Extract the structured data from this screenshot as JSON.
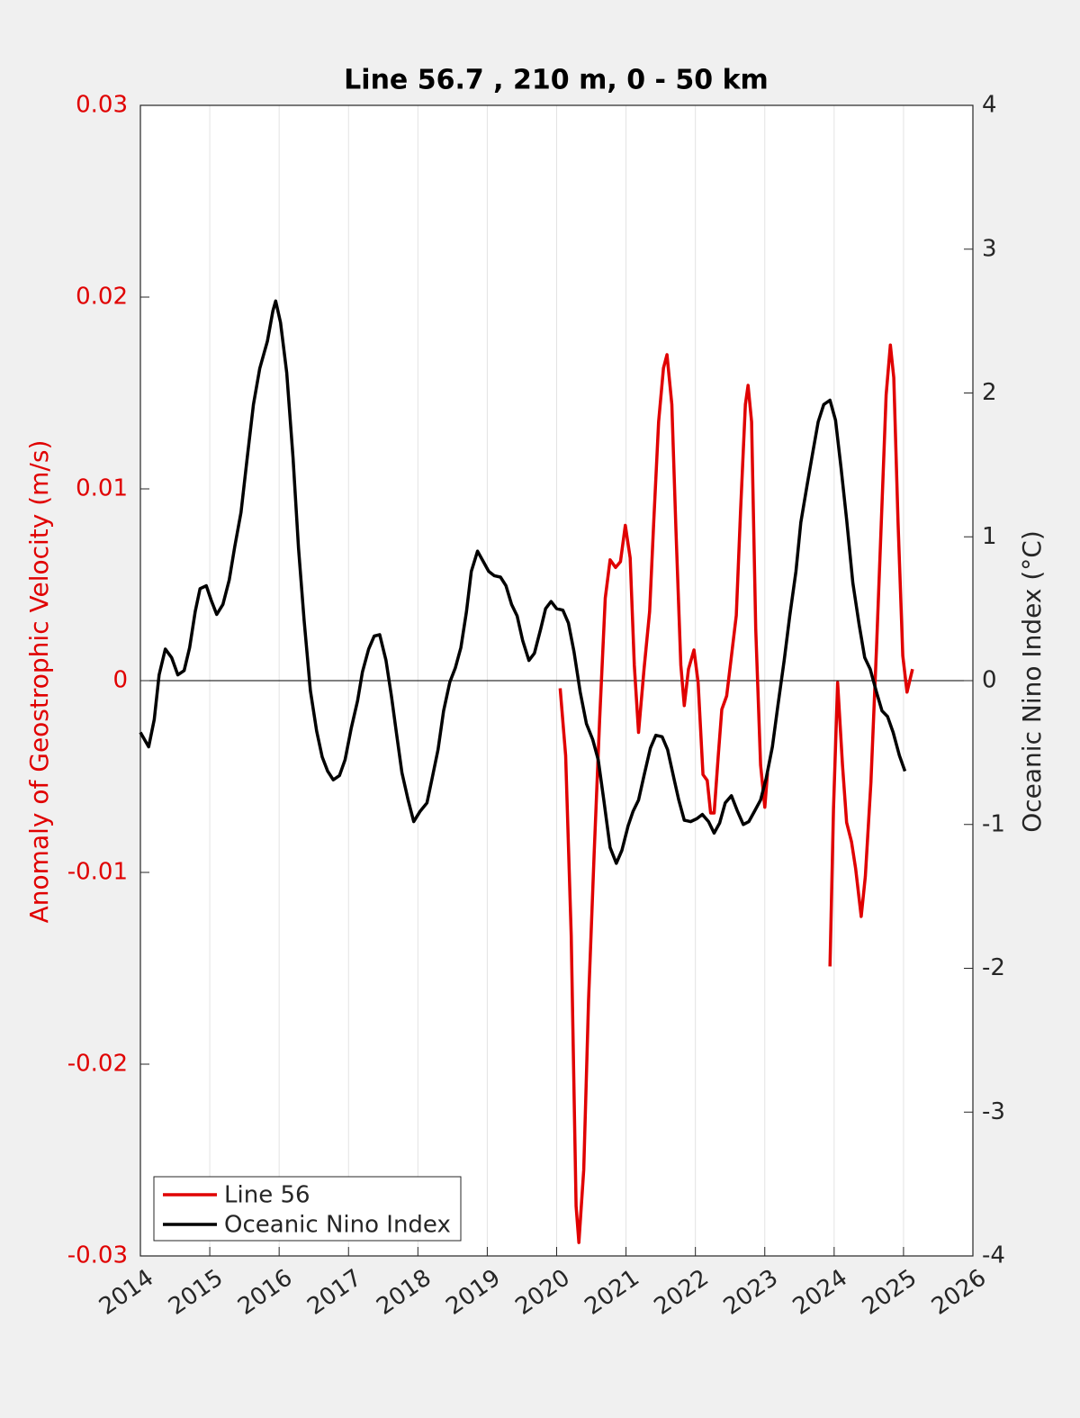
{
  "chart_data": {
    "type": "line",
    "title": "Line 56.7 , 210 m, 0 - 50 km",
    "y_label": "Anomaly of Geostrophic Velocity (m/s)",
    "y2_label": "Oceanic Nino Index (°C)",
    "xlim": [
      2014,
      2026
    ],
    "xticks": [
      2014,
      2015,
      2016,
      2017,
      2018,
      2019,
      2020,
      2021,
      2022,
      2023,
      2024,
      2025,
      2026
    ],
    "ylim": [
      -0.03,
      0.03
    ],
    "yticks": [
      -0.03,
      -0.02,
      -0.01,
      0,
      0.01,
      0.02,
      0.03
    ],
    "y2lim": [
      -4,
      4
    ],
    "y2ticks": [
      -4,
      -3,
      -2,
      -1,
      0,
      1,
      2,
      3,
      4
    ],
    "grid": true,
    "legend": "lower left",
    "y_color": "#e00000",
    "series": [
      {
        "name": "Line 56",
        "color": "#e00000",
        "x": [
          2020.05,
          2020.13,
          2020.21,
          2020.28,
          2020.32,
          2020.39,
          2020.46,
          2020.54,
          2020.62,
          2020.7,
          2020.77,
          2020.85,
          2020.92,
          2020.99,
          2021.06,
          2021.12,
          2021.18,
          2021.26,
          2021.34,
          2021.4,
          2021.47,
          2021.54,
          2021.59,
          2021.66,
          2021.72,
          2021.79,
          2021.84,
          2021.9,
          2021.98,
          2022.04,
          2022.11,
          2022.17,
          2022.22,
          2022.27,
          2022.33,
          2022.38,
          2022.45,
          2022.51,
          2022.59,
          2022.65,
          2022.72,
          2022.76,
          2022.81,
          2022.87,
          2022.94,
          2023.0,
          2023.04,
          null,
          2023.94,
          2023.99,
          2024.05,
          2024.12,
          2024.18,
          2024.25,
          2024.31,
          2024.39,
          2024.45,
          2024.53,
          2024.61,
          2024.69,
          2024.75,
          2024.81,
          2024.86,
          2024.92,
          2024.99,
          2025.05,
          2025.13
        ],
        "values": [
          -0.0004,
          -0.0039,
          -0.0133,
          -0.0274,
          -0.0293,
          -0.0255,
          -0.0166,
          -0.0091,
          -0.002,
          0.0043,
          0.0063,
          0.0059,
          0.0062,
          0.0081,
          0.0064,
          0.0008,
          -0.0027,
          0.0006,
          0.0036,
          0.0083,
          0.0135,
          0.0163,
          0.017,
          0.0144,
          0.0078,
          0.0008,
          -0.0013,
          0.0006,
          0.0016,
          -0.0001,
          -0.0049,
          -0.0052,
          -0.0069,
          -0.0069,
          -0.0039,
          -0.0015,
          -0.0008,
          0.001,
          0.0034,
          0.0088,
          0.0144,
          0.0154,
          0.0135,
          0.0027,
          -0.0044,
          -0.0066,
          -0.0048,
          null,
          -0.0149,
          -0.0067,
          -0.0001,
          -0.0044,
          -0.0074,
          -0.0084,
          -0.0098,
          -0.0123,
          -0.0102,
          -0.0053,
          0.0017,
          0.0092,
          0.0149,
          0.0175,
          0.0158,
          0.0083,
          0.0013,
          -0.0006,
          0.0006
        ]
      },
      {
        "name": "Oceanic Nino Index",
        "color": "#000000",
        "axis": "y2",
        "x": [
          2014.0,
          2014.12,
          2014.2,
          2014.27,
          2014.36,
          2014.45,
          2014.54,
          2014.63,
          2014.71,
          2014.79,
          2014.86,
          2014.95,
          2015.02,
          2015.1,
          2015.19,
          2015.28,
          2015.36,
          2015.45,
          2015.54,
          2015.63,
          2015.72,
          2015.83,
          2015.91,
          2015.95,
          2016.02,
          2016.11,
          2016.2,
          2016.28,
          2016.36,
          2016.45,
          2016.54,
          2016.62,
          2016.7,
          2016.78,
          2016.87,
          2016.95,
          2017.04,
          2017.13,
          2017.2,
          2017.29,
          2017.37,
          2017.45,
          2017.54,
          2017.62,
          2017.69,
          2017.77,
          2017.86,
          2017.94,
          2018.03,
          2018.13,
          2018.2,
          2018.29,
          2018.37,
          2018.46,
          2018.54,
          2018.62,
          2018.7,
          2018.77,
          2018.86,
          2018.94,
          2019.02,
          2019.1,
          2019.19,
          2019.27,
          2019.35,
          2019.43,
          2019.51,
          2019.6,
          2019.68,
          2019.77,
          2019.84,
          2019.92,
          2020.0,
          2020.09,
          2020.17,
          2020.25,
          2020.34,
          2020.43,
          2020.52,
          2020.6,
          2020.68,
          2020.77,
          2020.86,
          2020.94,
          2021.03,
          2021.1,
          2021.18,
          2021.26,
          2021.35,
          2021.43,
          2021.52,
          2021.6,
          2021.69,
          2021.76,
          2021.84,
          2021.93,
          2022.02,
          2022.1,
          2022.19,
          2022.27,
          2022.35,
          2022.43,
          2022.52,
          2022.6,
          2022.69,
          2022.77,
          2022.85,
          2022.94,
          2023.02,
          2023.11,
          2023.19,
          2023.28,
          2023.36,
          2023.45,
          2023.52,
          2023.61,
          2023.69,
          2023.77,
          2023.85,
          2023.94,
          2024.02,
          2024.1,
          2024.18,
          2024.27,
          2024.36,
          2024.44,
          2024.52,
          2024.61,
          2024.69,
          2024.77,
          2024.85,
          2024.94,
          2025.02
        ],
        "values": [
          -0.36,
          -0.46,
          -0.27,
          0.04,
          0.22,
          0.16,
          0.04,
          0.07,
          0.23,
          0.48,
          0.64,
          0.66,
          0.56,
          0.46,
          0.53,
          0.7,
          0.93,
          1.17,
          1.55,
          1.92,
          2.17,
          2.36,
          2.57,
          2.64,
          2.49,
          2.14,
          1.55,
          0.92,
          0.42,
          -0.07,
          -0.35,
          -0.53,
          -0.63,
          -0.69,
          -0.66,
          -0.55,
          -0.33,
          -0.14,
          0.06,
          0.22,
          0.31,
          0.32,
          0.14,
          -0.11,
          -0.36,
          -0.64,
          -0.83,
          -0.98,
          -0.91,
          -0.85,
          -0.69,
          -0.48,
          -0.21,
          -0.01,
          0.09,
          0.23,
          0.48,
          0.76,
          0.9,
          0.83,
          0.76,
          0.73,
          0.72,
          0.66,
          0.53,
          0.45,
          0.28,
          0.14,
          0.19,
          0.36,
          0.5,
          0.55,
          0.5,
          0.49,
          0.4,
          0.2,
          -0.08,
          -0.3,
          -0.41,
          -0.55,
          -0.83,
          -1.16,
          -1.27,
          -1.18,
          -1.01,
          -0.91,
          -0.83,
          -0.66,
          -0.47,
          -0.38,
          -0.39,
          -0.48,
          -0.68,
          -0.83,
          -0.97,
          -0.98,
          -0.96,
          -0.93,
          -0.98,
          -1.06,
          -0.99,
          -0.85,
          -0.8,
          -0.9,
          -1.0,
          -0.98,
          -0.91,
          -0.83,
          -0.68,
          -0.46,
          -0.17,
          0.14,
          0.45,
          0.76,
          1.1,
          1.36,
          1.58,
          1.8,
          1.92,
          1.95,
          1.81,
          1.48,
          1.12,
          0.68,
          0.39,
          0.16,
          0.08,
          -0.08,
          -0.21,
          -0.25,
          -0.36,
          -0.52,
          -0.63
        ]
      }
    ]
  }
}
